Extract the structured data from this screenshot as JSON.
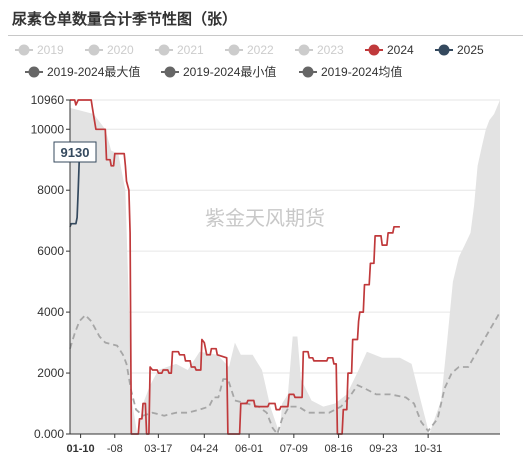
{
  "title": "尿素仓单数量合计季节性图（张）",
  "watermark": "紫金天风期货",
  "current_value_label": "9130",
  "colors": {
    "inactive": "#cccccc",
    "series_2024": "#c0393b",
    "series_2025": "#34495e",
    "stat": "#666666",
    "band": "#e3e3e3",
    "avg_line": "#a6a6a6",
    "grid": "#e6e6e6",
    "axis": "#333333"
  },
  "legend": [
    {
      "name": "2019",
      "marker": "circle",
      "active": false
    },
    {
      "name": "2020",
      "marker": "circle",
      "active": false
    },
    {
      "name": "2021",
      "marker": "circle",
      "active": false
    },
    {
      "name": "2022",
      "marker": "circle",
      "active": false
    },
    {
      "name": "2023",
      "marker": "circle",
      "active": false
    },
    {
      "name": "2024",
      "marker": "circle",
      "active": true,
      "color_key": "series_2024"
    },
    {
      "name": "2025",
      "marker": "circle",
      "active": true,
      "color_key": "series_2025"
    },
    {
      "name": "2019-2024最大值",
      "marker": "circle",
      "active": true,
      "color_key": "stat"
    },
    {
      "name": "2019-2024最小值",
      "marker": "circle",
      "active": true,
      "color_key": "stat"
    },
    {
      "name": "2019-2024均值",
      "marker": "circle",
      "active": true,
      "color_key": "stat"
    }
  ],
  "chart_data": {
    "type": "line",
    "xlabel": "",
    "ylabel": "",
    "x_axis": "day-of-year",
    "xlim": [
      0,
      365
    ],
    "ylim": [
      0,
      10960
    ],
    "y_ticks": [
      {
        "value": 0,
        "label": "0.000"
      },
      {
        "value": 2000,
        "label": "2000"
      },
      {
        "value": 4000,
        "label": "4000"
      },
      {
        "value": 6000,
        "label": "6000"
      },
      {
        "value": 8000,
        "label": "8000"
      },
      {
        "value": 10000,
        "label": "10000"
      },
      {
        "value": 10960,
        "label": "10960"
      }
    ],
    "x_ticks": [
      {
        "day": 9,
        "label": "01-10",
        "bold": true
      },
      {
        "day": 38,
        "label": "-08",
        "bold": false
      },
      {
        "day": 75,
        "label": "03-17",
        "bold": false
      },
      {
        "day": 114,
        "label": "04-24",
        "bold": false
      },
      {
        "day": 152,
        "label": "06-01",
        "bold": false
      },
      {
        "day": 190,
        "label": "07-09",
        "bold": false
      },
      {
        "day": 228,
        "label": "08-16",
        "bold": false
      },
      {
        "day": 266,
        "label": "09-23",
        "bold": false
      },
      {
        "day": 304,
        "label": "10-31",
        "bold": false
      }
    ],
    "grid": true,
    "band": {
      "name": "2019-2024最大值 / 2019-2024最小值",
      "upper": [
        [
          0,
          10700
        ],
        [
          20,
          10500
        ],
        [
          30,
          10000
        ],
        [
          35,
          9300
        ],
        [
          41,
          9200
        ],
        [
          44,
          8600
        ],
        [
          47,
          8000
        ],
        [
          50,
          4200
        ],
        [
          53,
          1000
        ],
        [
          57,
          0
        ],
        [
          63,
          1100
        ],
        [
          68,
          1600
        ],
        [
          75,
          2100
        ],
        [
          90,
          2300
        ],
        [
          100,
          2100
        ],
        [
          110,
          2700
        ],
        [
          125,
          2600
        ],
        [
          135,
          2200
        ],
        [
          140,
          3000
        ],
        [
          145,
          2600
        ],
        [
          155,
          2600
        ],
        [
          163,
          2100
        ],
        [
          170,
          900
        ],
        [
          178,
          0
        ],
        [
          180,
          1000
        ],
        [
          185,
          1300
        ],
        [
          189,
          3200
        ],
        [
          193,
          3200
        ],
        [
          196,
          1800
        ],
        [
          205,
          1100
        ],
        [
          215,
          900
        ],
        [
          225,
          1000
        ],
        [
          235,
          1300
        ],
        [
          245,
          2100
        ],
        [
          252,
          2700
        ],
        [
          265,
          2500
        ],
        [
          280,
          2500
        ],
        [
          290,
          2300
        ],
        [
          297,
          1200
        ],
        [
          305,
          0
        ],
        [
          315,
          1100
        ],
        [
          320,
          3000
        ],
        [
          325,
          5000
        ],
        [
          330,
          5800
        ],
        [
          335,
          6200
        ],
        [
          340,
          6600
        ],
        [
          343,
          7500
        ],
        [
          346,
          8800
        ],
        [
          350,
          9500
        ],
        [
          353,
          10000
        ],
        [
          356,
          10300
        ],
        [
          360,
          10500
        ],
        [
          365,
          10960
        ]
      ],
      "lower": [
        [
          0,
          0
        ],
        [
          365,
          0
        ]
      ]
    },
    "series": [
      {
        "name": "2019-2024均值",
        "style": "dashed",
        "color_key": "avg_line",
        "points": [
          [
            0,
            2800
          ],
          [
            4,
            3300
          ],
          [
            8,
            3700
          ],
          [
            13,
            3900
          ],
          [
            18,
            3700
          ],
          [
            25,
            3200
          ],
          [
            30,
            3000
          ],
          [
            40,
            2900
          ],
          [
            45,
            2600
          ],
          [
            48,
            2300
          ],
          [
            52,
            1400
          ],
          [
            56,
            800
          ],
          [
            62,
            600
          ],
          [
            70,
            700
          ],
          [
            80,
            600
          ],
          [
            90,
            700
          ],
          [
            100,
            700
          ],
          [
            110,
            800
          ],
          [
            118,
            900
          ],
          [
            122,
            1200
          ],
          [
            126,
            1200
          ],
          [
            130,
            1800
          ],
          [
            134,
            1800
          ],
          [
            140,
            1100
          ],
          [
            150,
            1000
          ],
          [
            160,
            900
          ],
          [
            167,
            700
          ],
          [
            172,
            200
          ],
          [
            176,
            0
          ],
          [
            180,
            500
          ],
          [
            186,
            900
          ],
          [
            194,
            900
          ],
          [
            202,
            700
          ],
          [
            210,
            700
          ],
          [
            220,
            700
          ],
          [
            230,
            900
          ],
          [
            237,
            1200
          ],
          [
            244,
            1600
          ],
          [
            250,
            1500
          ],
          [
            260,
            1300
          ],
          [
            272,
            1300
          ],
          [
            285,
            1200
          ],
          [
            292,
            1000
          ],
          [
            298,
            400
          ],
          [
            304,
            100
          ],
          [
            312,
            500
          ],
          [
            318,
            1500
          ],
          [
            324,
            2000
          ],
          [
            330,
            2200
          ],
          [
            338,
            2200
          ],
          [
            344,
            2600
          ],
          [
            350,
            3000
          ],
          [
            356,
            3400
          ],
          [
            362,
            3800
          ],
          [
            365,
            4000
          ]
        ]
      },
      {
        "name": "2024",
        "style": "solid",
        "color_key": "series_2024",
        "points": [
          [
            0,
            10960
          ],
          [
            4,
            10960
          ],
          [
            5,
            10800
          ],
          [
            7,
            10960
          ],
          [
            18,
            10960
          ],
          [
            19,
            10700
          ],
          [
            22,
            10000
          ],
          [
            30,
            10000
          ],
          [
            31,
            9000
          ],
          [
            34,
            9000
          ],
          [
            35,
            8800
          ],
          [
            37,
            8800
          ],
          [
            38,
            9200
          ],
          [
            46,
            9200
          ],
          [
            47,
            8800
          ],
          [
            48,
            8300
          ],
          [
            50,
            8000
          ],
          [
            51,
            6600
          ],
          [
            52,
            0
          ],
          [
            58,
            0
          ],
          [
            59,
            500
          ],
          [
            61,
            500
          ],
          [
            62,
            1000
          ],
          [
            64,
            1000
          ],
          [
            65,
            0
          ],
          [
            67,
            0
          ],
          [
            68,
            2200
          ],
          [
            70,
            2100
          ],
          [
            74,
            2100
          ],
          [
            75,
            2000
          ],
          [
            78,
            2000
          ],
          [
            79,
            2100
          ],
          [
            83,
            2100
          ],
          [
            84,
            2000
          ],
          [
            86,
            2000
          ],
          [
            87,
            2700
          ],
          [
            92,
            2700
          ],
          [
            93,
            2600
          ],
          [
            97,
            2600
          ],
          [
            98,
            2400
          ],
          [
            102,
            2400
          ],
          [
            103,
            2200
          ],
          [
            106,
            2200
          ],
          [
            107,
            2100
          ],
          [
            111,
            2100
          ],
          [
            112,
            3100
          ],
          [
            114,
            3000
          ],
          [
            116,
            2600
          ],
          [
            119,
            2600
          ],
          [
            120,
            2800
          ],
          [
            124,
            2800
          ],
          [
            125,
            2600
          ],
          [
            133,
            2500
          ],
          [
            134,
            0
          ],
          [
            144,
            0
          ],
          [
            145,
            1000
          ],
          [
            150,
            1000
          ],
          [
            151,
            1100
          ],
          [
            156,
            1100
          ],
          [
            157,
            900
          ],
          [
            168,
            900
          ],
          [
            169,
            1000
          ],
          [
            174,
            1000
          ],
          [
            175,
            800
          ],
          [
            178,
            800
          ],
          [
            179,
            900
          ],
          [
            185,
            900
          ],
          [
            186,
            1300
          ],
          [
            190,
            1300
          ],
          [
            191,
            1200
          ],
          [
            197,
            1200
          ],
          [
            198,
            2700
          ],
          [
            202,
            2700
          ],
          [
            203,
            2500
          ],
          [
            206,
            2500
          ],
          [
            207,
            2400
          ],
          [
            218,
            2400
          ],
          [
            219,
            2500
          ],
          [
            223,
            2500
          ],
          [
            224,
            2300
          ],
          [
            226,
            2300
          ],
          [
            227,
            0
          ],
          [
            231,
            0
          ],
          [
            232,
            800
          ],
          [
            235,
            800
          ],
          [
            236,
            2000
          ],
          [
            239,
            2000
          ],
          [
            240,
            3100
          ],
          [
            244,
            3100
          ],
          [
            245,
            3700
          ],
          [
            246,
            4000
          ],
          [
            249,
            4000
          ],
          [
            250,
            4900
          ],
          [
            254,
            4900
          ],
          [
            255,
            5600
          ],
          [
            258,
            5600
          ],
          [
            259,
            6500
          ],
          [
            264,
            6500
          ],
          [
            265,
            6200
          ],
          [
            269,
            6200
          ],
          [
            270,
            6600
          ],
          [
            274,
            6600
          ],
          [
            275,
            6800
          ],
          [
            280,
            6800
          ]
        ]
      },
      {
        "name": "2025",
        "style": "solid",
        "color_key": "series_2025",
        "points": [
          [
            0,
            6800
          ],
          [
            1,
            6900
          ],
          [
            5,
            6900
          ],
          [
            6,
            7100
          ],
          [
            7,
            8000
          ],
          [
            8,
            9130
          ]
        ]
      }
    ]
  }
}
